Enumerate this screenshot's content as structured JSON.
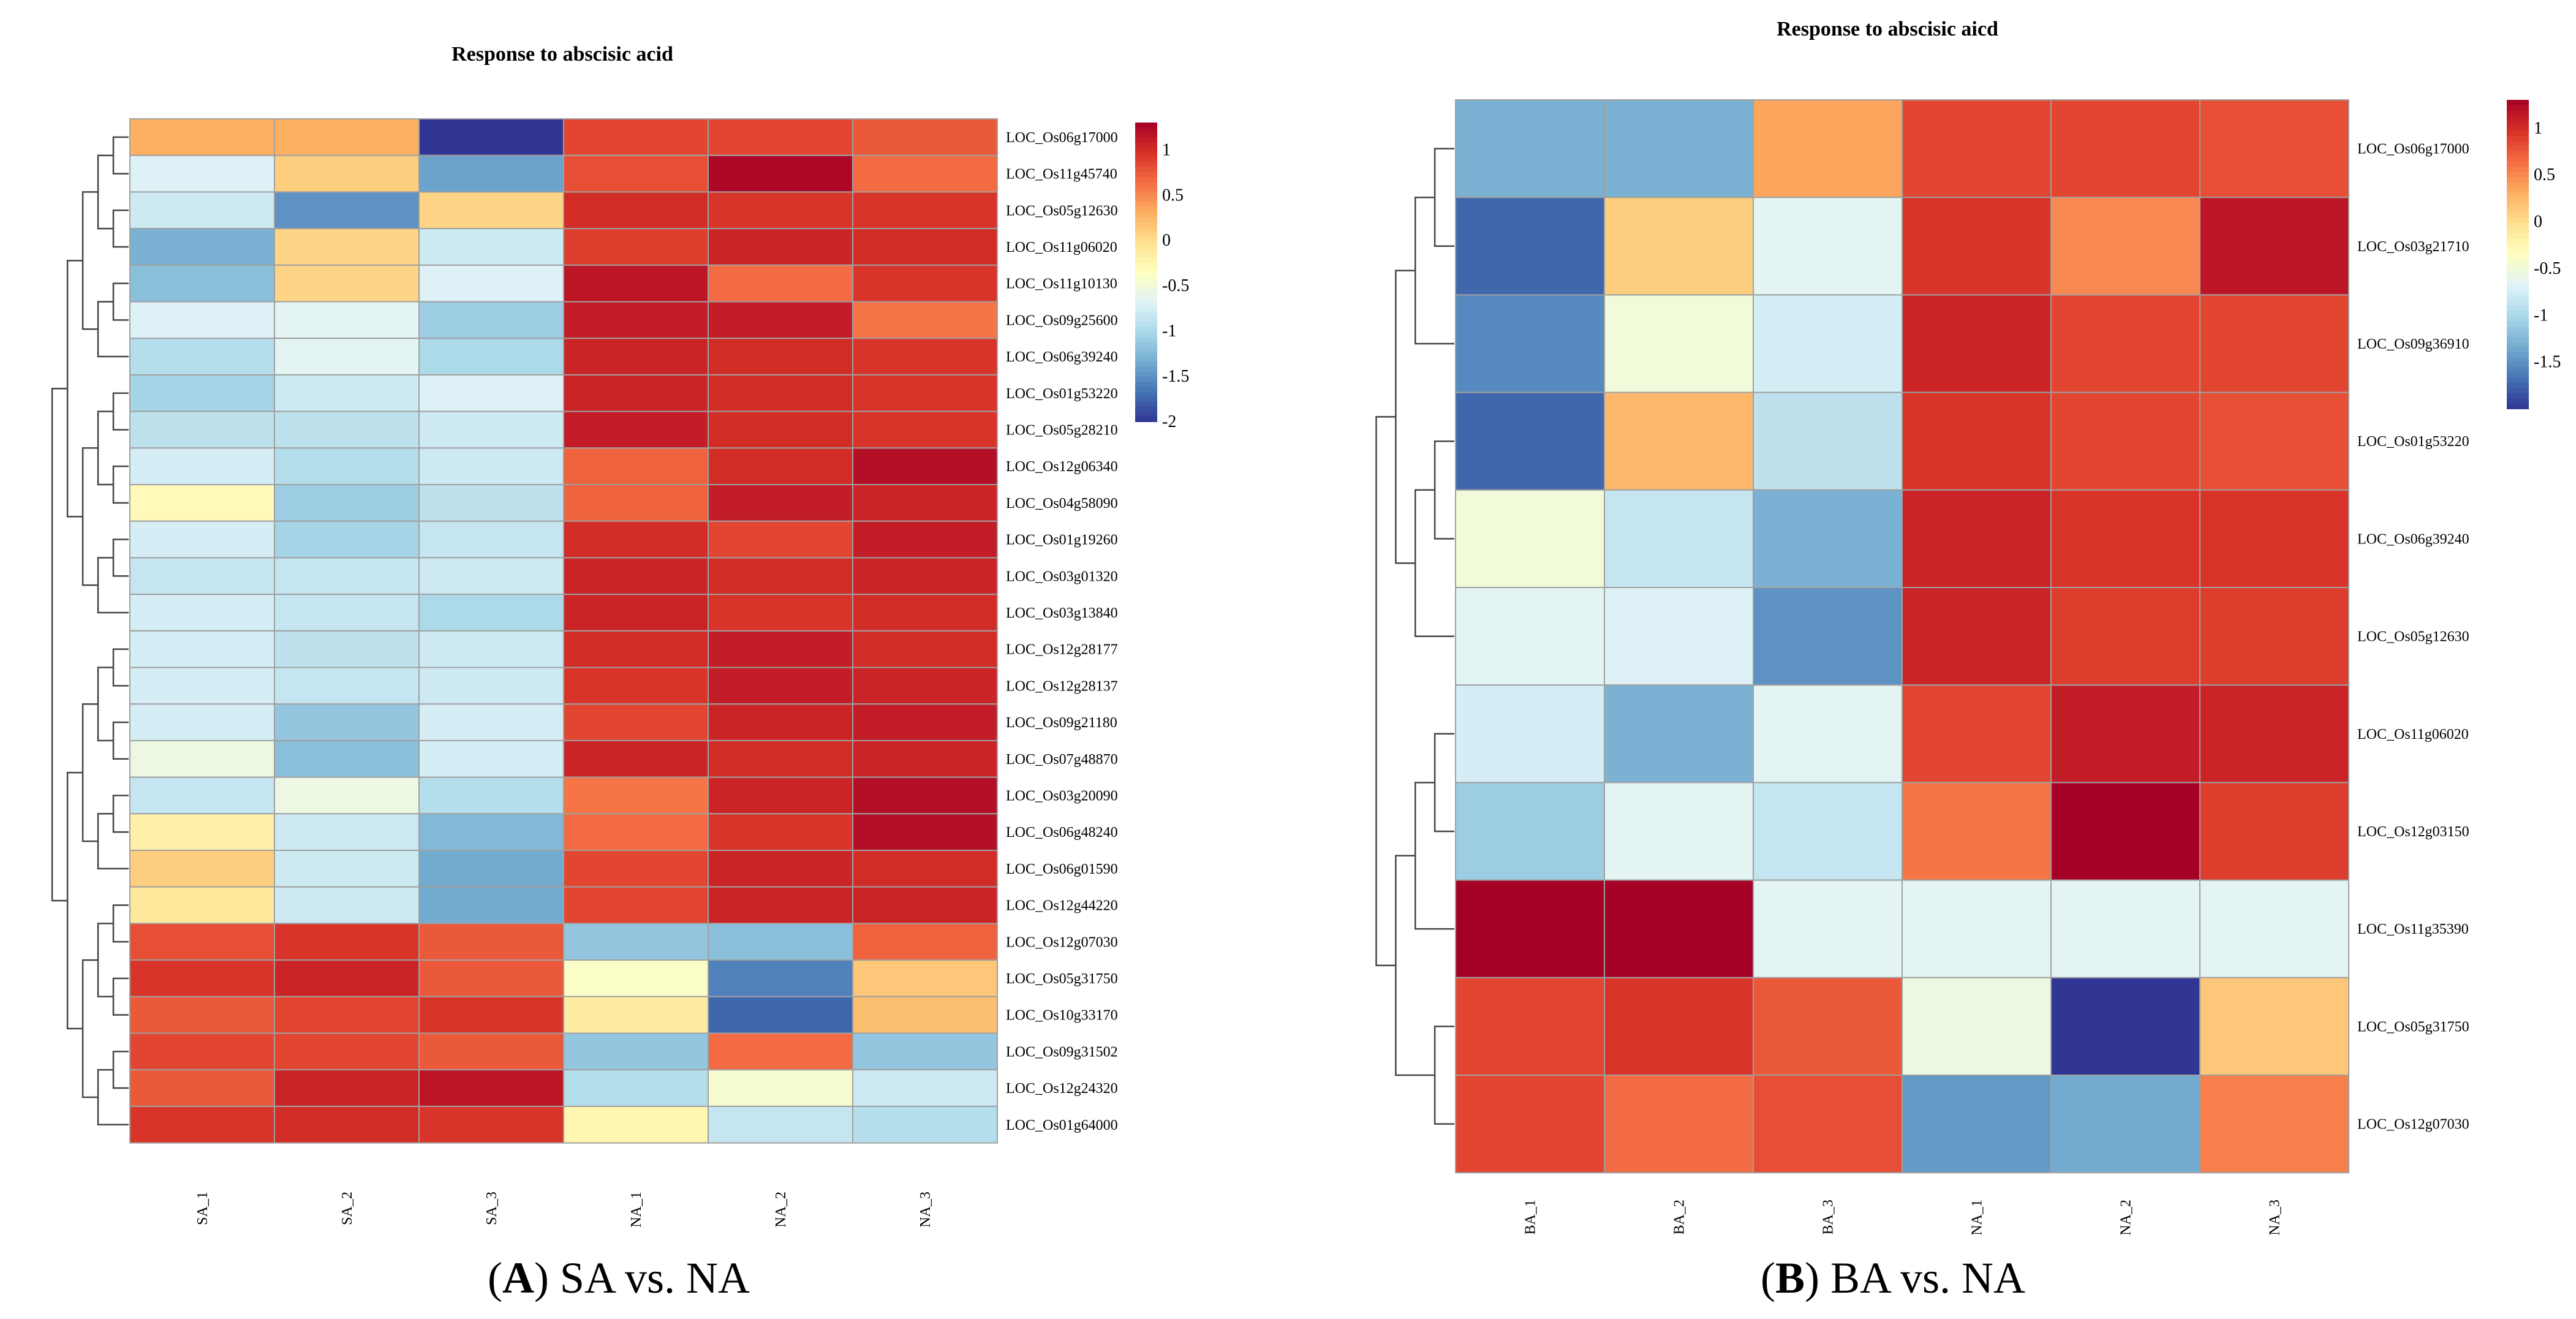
{
  "chart_data": [
    {
      "type": "heatmap",
      "panel": "A",
      "title": "Response to abscisic acid",
      "caption_letter": "A",
      "caption_text": ") SA vs. NA",
      "caption_open": "(",
      "columns": [
        "SA_1",
        "SA_2",
        "SA_3",
        "NA_1",
        "NA_2",
        "NA_3"
      ],
      "rows": [
        "LOC_Os06g17000",
        "LOC_Os11g45740",
        "LOC_Os05g12630",
        "LOC_Os11g06020",
        "LOC_Os11g10130",
        "LOC_Os09g25600",
        "LOC_Os06g39240",
        "LOC_Os01g53220",
        "LOC_Os05g28210",
        "LOC_Os12g06340",
        "LOC_Os04g58090",
        "LOC_Os01g19260",
        "LOC_Os03g01320",
        "LOC_Os03g13840",
        "LOC_Os12g28177",
        "LOC_Os12g28137",
        "LOC_Os09g21180",
        "LOC_Os07g48870",
        "LOC_Os03g20090",
        "LOC_Os06g48240",
        "LOC_Os06g01590",
        "LOC_Os12g44220",
        "LOC_Os12g07030",
        "LOC_Os05g31750",
        "LOC_Os10g33170",
        "LOC_Os09g31502",
        "LOC_Os12g24320",
        "LOC_Os01g64000"
      ],
      "values": [
        [
          0.3,
          0.3,
          -2.0,
          0.85,
          0.85,
          0.75
        ],
        [
          -0.7,
          0.1,
          -1.4,
          0.8,
          1.25,
          0.65
        ],
        [
          -0.8,
          -1.5,
          0.05,
          1.0,
          0.95,
          0.95
        ],
        [
          -1.3,
          0.05,
          -0.8,
          0.9,
          1.05,
          1.0
        ],
        [
          -1.2,
          0.05,
          -0.7,
          1.15,
          0.65,
          0.95
        ],
        [
          -0.7,
          -0.65,
          -1.1,
          1.1,
          1.1,
          0.6
        ],
        [
          -0.95,
          -0.65,
          -1.0,
          1.05,
          1.0,
          0.95
        ],
        [
          -1.05,
          -0.8,
          -0.7,
          1.05,
          1.0,
          0.95
        ],
        [
          -0.9,
          -0.9,
          -0.8,
          1.1,
          1.0,
          0.95
        ],
        [
          -0.75,
          -0.95,
          -0.8,
          0.7,
          1.0,
          1.2
        ],
        [
          -0.3,
          -1.1,
          -0.9,
          0.7,
          1.1,
          1.05
        ],
        [
          -0.75,
          -1.05,
          -0.85,
          1.0,
          0.85,
          1.1
        ],
        [
          -0.85,
          -0.85,
          -0.8,
          1.05,
          1.0,
          1.05
        ],
        [
          -0.75,
          -0.85,
          -1.0,
          1.05,
          0.95,
          1.0
        ],
        [
          -0.75,
          -0.9,
          -0.8,
          1.0,
          1.1,
          1.0
        ],
        [
          -0.75,
          -0.85,
          -0.8,
          0.95,
          1.1,
          1.05
        ],
        [
          -0.75,
          -1.15,
          -0.75,
          0.85,
          1.05,
          1.1
        ],
        [
          -0.55,
          -1.2,
          -0.75,
          1.05,
          1.0,
          1.05
        ],
        [
          -0.85,
          -0.55,
          -0.95,
          0.6,
          1.05,
          1.2
        ],
        [
          -0.2,
          -0.8,
          -1.25,
          0.65,
          0.95,
          1.2
        ],
        [
          0.1,
          -0.8,
          -1.35,
          0.85,
          1.05,
          1.0
        ],
        [
          -0.1,
          -0.8,
          -1.35,
          0.85,
          1.05,
          1.05
        ],
        [
          0.8,
          0.95,
          0.75,
          -1.15,
          -1.2,
          0.7
        ],
        [
          0.95,
          1.05,
          0.75,
          -0.4,
          -1.6,
          0.15
        ],
        [
          0.75,
          0.85,
          0.95,
          -0.15,
          -1.75,
          0.2
        ],
        [
          0.85,
          0.85,
          0.75,
          -1.15,
          0.65,
          -1.15
        ],
        [
          0.75,
          1.05,
          1.15,
          -0.95,
          -0.45,
          -0.8
        ],
        [
          0.95,
          1.0,
          0.95,
          -0.25,
          -0.85,
          -0.95
        ]
      ],
      "colorbar_ticks": [
        "1",
        "0.5",
        "0",
        "-0.5",
        "-1",
        "-1.5",
        "-2"
      ],
      "colorbar_range": [
        -2.0,
        1.3
      ]
    },
    {
      "type": "heatmap",
      "panel": "B",
      "title": "Response to abscisic aicd",
      "caption_letter": "B",
      "caption_text": ") BA vs. NA",
      "caption_open": "(",
      "columns": [
        "BA_1",
        "BA_2",
        "BA_3",
        "NA_1",
        "NA_2",
        "NA_3"
      ],
      "rows": [
        "LOC_Os06g17000",
        "LOC_Os03g21710",
        "LOC_Os09g36910",
        "LOC_Os01g53220",
        "LOC_Os06g39240",
        "LOC_Os05g12630",
        "LOC_Os11g06020",
        "LOC_Os12g03150",
        "LOC_Os11g35390",
        "LOC_Os05g31750",
        "LOC_Os12g07030"
      ],
      "values": [
        [
          -1.3,
          -1.3,
          0.35,
          0.85,
          0.85,
          0.8
        ],
        [
          -1.75,
          0.1,
          -0.65,
          0.95,
          0.5,
          1.15
        ],
        [
          -1.55,
          -0.5,
          -0.75,
          1.05,
          0.85,
          0.85
        ],
        [
          -1.75,
          0.25,
          -0.9,
          0.95,
          0.85,
          0.8
        ],
        [
          -0.5,
          -0.85,
          -1.3,
          1.05,
          0.95,
          0.95
        ],
        [
          -0.65,
          -0.7,
          -1.5,
          1.05,
          0.9,
          0.9
        ],
        [
          -0.75,
          -1.3,
          -0.65,
          0.85,
          1.1,
          1.05
        ],
        [
          -1.1,
          -0.65,
          -0.85,
          0.6,
          1.3,
          0.9
        ],
        [
          1.3,
          1.3,
          -0.65,
          -0.65,
          -0.65,
          -0.65
        ],
        [
          0.85,
          0.95,
          0.75,
          -0.55,
          -2.0,
          0.15
        ],
        [
          0.85,
          0.65,
          0.8,
          -1.45,
          -1.35,
          0.55
        ]
      ],
      "colorbar_ticks": [
        "1",
        "0.5",
        "0",
        "-0.5",
        "-1",
        "-1.5"
      ],
      "colorbar_range": [
        -2.0,
        1.3
      ]
    }
  ]
}
